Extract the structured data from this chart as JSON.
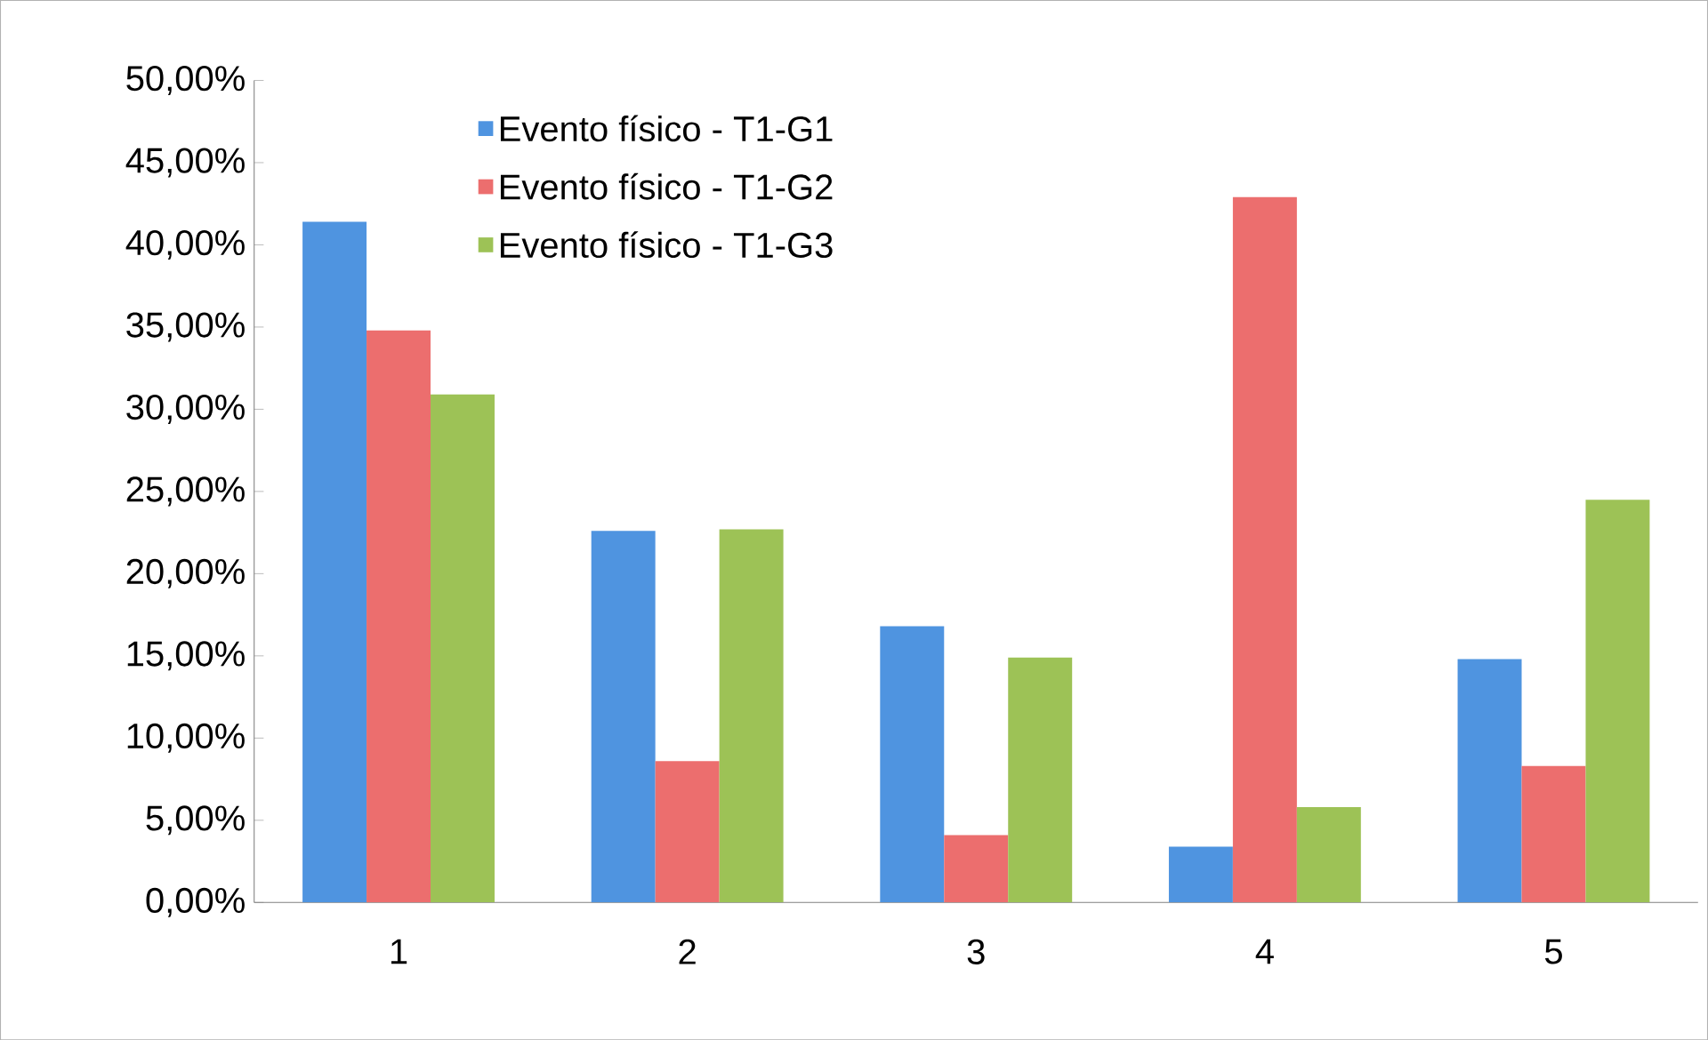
{
  "chart_data": {
    "type": "bar",
    "categories": [
      "1",
      "2",
      "3",
      "4",
      "5"
    ],
    "series": [
      {
        "name": "Evento físico - T1-G1",
        "color": "#4f94e0",
        "values": [
          41.4,
          22.6,
          16.8,
          3.4,
          14.8
        ]
      },
      {
        "name": "Evento físico - T1-G2",
        "color": "#ec6e6e",
        "values": [
          34.8,
          8.6,
          4.1,
          42.9,
          8.3
        ]
      },
      {
        "name": "Evento físico - T1-G3",
        "color": "#9dc256",
        "values": [
          30.9,
          22.7,
          14.9,
          5.8,
          24.5
        ]
      }
    ],
    "ylim": [
      0,
      50
    ],
    "yticks": [
      {
        "value": 0,
        "label": "0,00%"
      },
      {
        "value": 5,
        "label": "5,00%"
      },
      {
        "value": 10,
        "label": "10,00%"
      },
      {
        "value": 15,
        "label": "15,00%"
      },
      {
        "value": 20,
        "label": "20,00%"
      },
      {
        "value": 25,
        "label": "25,00%"
      },
      {
        "value": 30,
        "label": "30,00%"
      },
      {
        "value": 35,
        "label": "35,00%"
      },
      {
        "value": 40,
        "label": "40,00%"
      },
      {
        "value": 45,
        "label": "45,00%"
      },
      {
        "value": 50,
        "label": "50,00%"
      }
    ],
    "grid": false,
    "legend": "top left"
  }
}
